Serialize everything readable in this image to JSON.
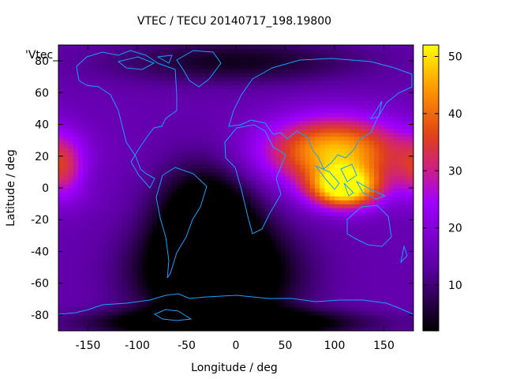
{
  "chart_data": {
    "type": "heatmap",
    "title": "VTEC / TECU 20140717_198.19800",
    "xlabel": "Longitude / deg",
    "ylabel": "Latitude / deg",
    "key_label": "'Vtec_",
    "xlim": [
      -180,
      180
    ],
    "ylim": [
      -90,
      90
    ],
    "xticks": [
      -150,
      -100,
      -50,
      0,
      50,
      100,
      150
    ],
    "yticks": [
      -80,
      -60,
      -40,
      -20,
      0,
      20,
      40,
      60,
      80
    ],
    "xtick_labels": [
      "-150",
      "-100",
      "-50",
      "0",
      "50",
      "100",
      "150"
    ],
    "ytick_labels": [
      "-80",
      "-60",
      "-40",
      "-20",
      "0",
      "20",
      "40",
      "60",
      "80"
    ],
    "colorbar": {
      "range": [
        2,
        52
      ],
      "ticks": [
        10,
        20,
        30,
        40,
        50
      ],
      "tick_labels": [
        "10",
        "20",
        "30",
        "40",
        "50"
      ]
    },
    "colors": {
      "low": "#000000",
      "mid_low": "#5a00a0",
      "mid": "#a000ff",
      "mid_high": "#e0401a",
      "high": "#ffff00",
      "coastline": "#1a9fff"
    },
    "features": [
      {
        "lon": 110,
        "lat": 0,
        "value": 52,
        "sx": 25,
        "sy": 9
      },
      {
        "lon": 100,
        "lat": 20,
        "value": 36,
        "sx": 55,
        "sy": 14
      },
      {
        "lon": 100,
        "lat": 30,
        "value": 28,
        "sx": 45,
        "sy": 14
      },
      {
        "lon": -175,
        "lat": 12,
        "value": 28,
        "sx": 15,
        "sy": 14
      },
      {
        "lon": -150,
        "lat": -8,
        "value": 16,
        "sx": 20,
        "sy": 7
      },
      {
        "lon": -20,
        "lat": -55,
        "value": -10,
        "sx": 55,
        "sy": 22
      },
      {
        "lon": -30,
        "lat": -20,
        "value": -6,
        "sx": 35,
        "sy": 25
      },
      {
        "lon": -10,
        "lat": -85,
        "value": -8,
        "sx": 90,
        "sy": 6
      },
      {
        "lon": 0,
        "lat": 80,
        "value": 4,
        "sx": 90,
        "sy": 10
      }
    ]
  }
}
